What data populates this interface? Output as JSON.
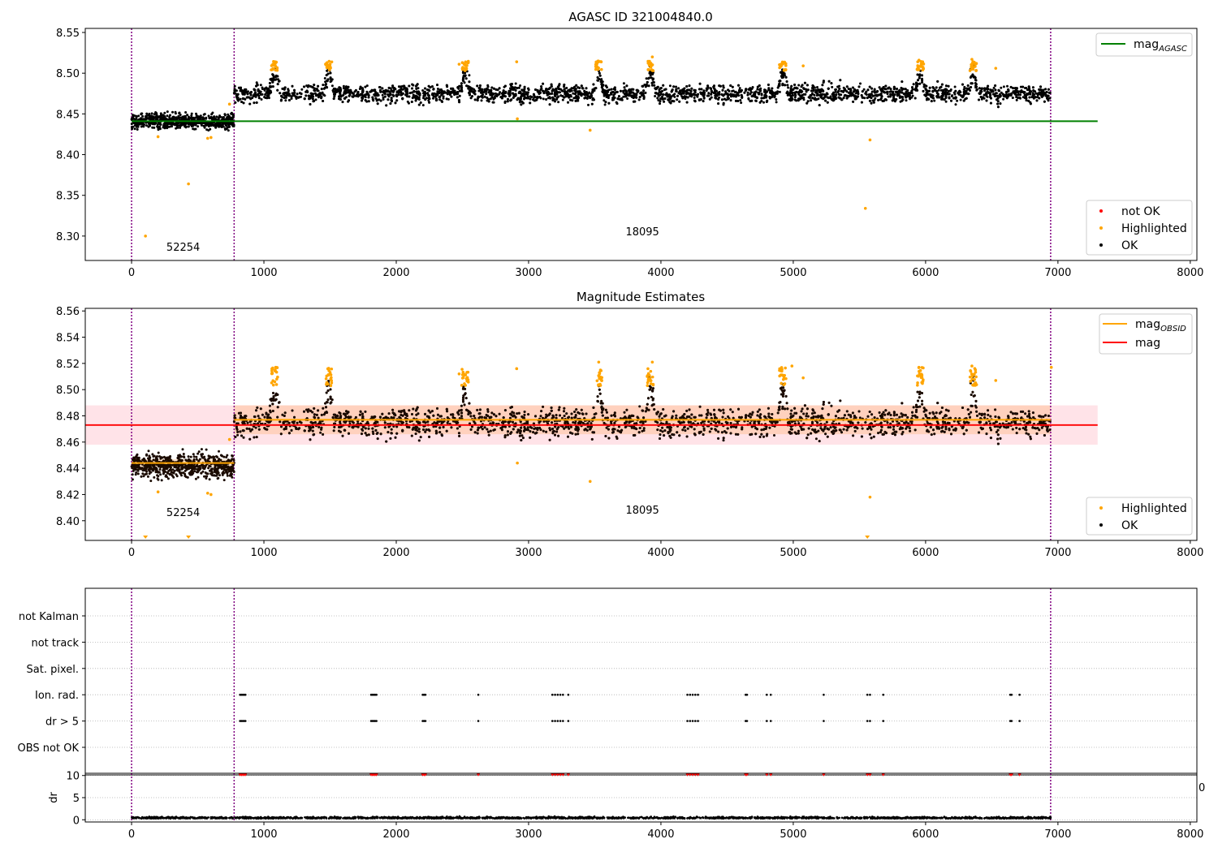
{
  "colors": {
    "ok": "#000000",
    "highlighted": "#ffa500",
    "not_ok": "#ff0000",
    "agasc_line": "#008000",
    "mag_line": "#ff0000",
    "obsid_line": "#ffa500",
    "obs_boundary": "#800080",
    "band": "#ffc0cb",
    "grid": "#b0b0b0"
  },
  "chart_data": [
    {
      "type": "scatter",
      "title": "AGASC ID 321004840.0",
      "xlabel": "",
      "ylabel": "",
      "xlim": [
        -350,
        8050
      ],
      "ylim": [
        8.27,
        8.555
      ],
      "xticks": [
        "0",
        "1000",
        "2000",
        "3000",
        "4000",
        "5000",
        "6000",
        "7000",
        "8000"
      ],
      "yticks": [
        "8.30",
        "8.35",
        "8.40",
        "8.45",
        "8.50",
        "8.55"
      ],
      "obs_boundaries": [
        0,
        775,
        6945
      ],
      "obs_labels": [
        {
          "text": "52254",
          "x": 390,
          "y": 8.282
        },
        {
          "text": "18095",
          "x": 3860,
          "y": 8.301
        }
      ],
      "series": [
        {
          "name": "not OK",
          "kind": "points",
          "values": []
        },
        {
          "name": "Highlighted",
          "kind": "points",
          "values": [
            {
              "x": 105,
              "y": 8.3
            },
            {
              "x": 430,
              "y": 8.364
            },
            {
              "x": 200,
              "y": 8.422
            },
            {
              "x": 575,
              "y": 8.42
            },
            {
              "x": 600,
              "y": 8.421
            },
            {
              "x": 2915,
              "y": 8.444
            },
            {
              "x": 3465,
              "y": 8.43
            },
            {
              "x": 5545,
              "y": 8.334
            },
            {
              "x": 5580,
              "y": 8.418
            },
            {
              "x": 740,
              "y": 8.462
            },
            {
              "x": 1085,
              "y": 8.514
            },
            {
              "x": 1500,
              "y": 8.511
            },
            {
              "x": 2475,
              "y": 8.511
            },
            {
              "x": 2910,
              "y": 8.514
            },
            {
              "x": 3525,
              "y": 8.515
            },
            {
              "x": 3935,
              "y": 8.52
            },
            {
              "x": 4920,
              "y": 8.512
            },
            {
              "x": 5075,
              "y": 8.509
            },
            {
              "x": 5950,
              "y": 8.516
            },
            {
              "x": 6350,
              "y": 8.517
            },
            {
              "x": 6530,
              "y": 8.506
            }
          ]
        },
        {
          "name": "OK",
          "kind": "points",
          "note_values": "dense observations; baseline levels below",
          "segments": [
            {
              "x0": 0,
              "x1": 775,
              "level": 8.441,
              "spread": 0.009
            },
            {
              "x0": 775,
              "x1": 6945,
              "level": 8.475,
              "spread": 0.011
            }
          ],
          "bumps": [
            1080,
            1490,
            2520,
            3530,
            3920,
            4920,
            5960,
            6360
          ]
        },
        {
          "name": "mag_AGASC",
          "kind": "hline",
          "y": 8.441,
          "xlim": [
            0,
            7300
          ]
        }
      ],
      "legends": [
        {
          "position": "upper-right",
          "entries": [
            {
              "label": "mag",
              "sub": "AGASC",
              "style": "line",
              "color_key": "agasc_line"
            }
          ]
        },
        {
          "position": "lower-right",
          "entries": [
            {
              "label": "not OK",
              "style": "dot",
              "color_key": "not_ok"
            },
            {
              "label": "Highlighted",
              "style": "dot",
              "color_key": "highlighted"
            },
            {
              "label": "OK",
              "style": "dot",
              "color_key": "ok"
            }
          ]
        }
      ]
    },
    {
      "type": "scatter",
      "title": "Magnitude Estimates",
      "xlabel": "",
      "ylabel": "",
      "xlim": [
        -350,
        8050
      ],
      "ylim": [
        8.385,
        8.562
      ],
      "xticks": [
        "0",
        "1000",
        "2000",
        "3000",
        "4000",
        "5000",
        "6000",
        "7000",
        "8000"
      ],
      "yticks": [
        "8.40",
        "8.42",
        "8.44",
        "8.46",
        "8.48",
        "8.50",
        "8.52",
        "8.54",
        "8.56"
      ],
      "obs_boundaries": [
        0,
        775,
        6945
      ],
      "obs_labels": [
        {
          "text": "52254",
          "x": 390,
          "y": 8.4035
        },
        {
          "text": "18095",
          "x": 3860,
          "y": 8.4055
        }
      ],
      "mag": {
        "value": 8.473,
        "band": [
          8.458,
          8.488
        ],
        "xlim": [
          -350,
          7300
        ]
      },
      "mag_obsid": [
        {
          "x0": 0,
          "x1": 775,
          "value": 8.444,
          "band": [
            8.441,
            8.447
          ]
        },
        {
          "x0": 775,
          "x1": 6945,
          "value": 8.477,
          "band": [
            8.466,
            8.488
          ]
        }
      ],
      "clipped_markers_x": [
        105,
        430,
        5560
      ],
      "series": [
        {
          "name": "Highlighted",
          "kind": "points",
          "values": [
            {
              "x": 200,
              "y": 8.422
            },
            {
              "x": 575,
              "y": 8.421
            },
            {
              "x": 600,
              "y": 8.42
            },
            {
              "x": 2915,
              "y": 8.444
            },
            {
              "x": 3465,
              "y": 8.43
            },
            {
              "x": 5580,
              "y": 8.418
            },
            {
              "x": 740,
              "y": 8.462
            },
            {
              "x": 1085,
              "y": 8.515
            },
            {
              "x": 1500,
              "y": 8.512
            },
            {
              "x": 2475,
              "y": 8.512
            },
            {
              "x": 2910,
              "y": 8.516
            },
            {
              "x": 3530,
              "y": 8.521
            },
            {
              "x": 3935,
              "y": 8.521
            },
            {
              "x": 4990,
              "y": 8.518
            },
            {
              "x": 5075,
              "y": 8.509
            },
            {
              "x": 5950,
              "y": 8.517
            },
            {
              "x": 6350,
              "y": 8.518
            },
            {
              "x": 6530,
              "y": 8.507
            },
            {
              "x": 6950,
              "y": 8.517
            }
          ]
        },
        {
          "name": "OK",
          "kind": "points",
          "note_values": "dense observations; baseline levels below",
          "segments": [
            {
              "x0": 0,
              "x1": 775,
              "level": 8.442,
              "spread": 0.009
            },
            {
              "x0": 775,
              "x1": 6945,
              "level": 8.475,
              "spread": 0.011
            }
          ]
        }
      ],
      "legends": [
        {
          "position": "upper-right",
          "entries": [
            {
              "label": "mag",
              "sub": "OBSID",
              "style": "line",
              "color_key": "obsid_line"
            },
            {
              "label": "mag",
              "sub": "",
              "style": "line",
              "color_key": "mag_line"
            }
          ]
        },
        {
          "position": "lower-right",
          "entries": [
            {
              "label": "Highlighted",
              "style": "dot",
              "color_key": "highlighted"
            },
            {
              "label": "OK",
              "style": "dot",
              "color_key": "ok"
            }
          ]
        }
      ]
    },
    {
      "type": "scatter",
      "title": "",
      "xlabel": "",
      "ylabel": "",
      "xlim": [
        -350,
        8050
      ],
      "categories": [
        "not Kalman",
        "not track",
        "Sat. pixel.",
        "Ion. rad.",
        "dr > 5",
        "OBS not OK"
      ],
      "obs_boundaries": [
        0,
        775,
        6945
      ],
      "flag_x": [
        820,
        830,
        840,
        850,
        860,
        1810,
        1820,
        1830,
        1840,
        1850,
        2200,
        2210,
        2220,
        2620,
        3180,
        3200,
        3220,
        3240,
        3260,
        3300,
        4200,
        4220,
        4240,
        4260,
        4280,
        4640,
        4650,
        4800,
        4830,
        5230,
        5560,
        5580,
        5680,
        6640,
        6650,
        6710
      ],
      "flagged_rows": [
        "Ion. rad.",
        "dr > 5"
      ]
    },
    {
      "type": "scatter",
      "title": "",
      "xlabel": "",
      "ylabel": "dr",
      "xlim": [
        -350,
        8050
      ],
      "ylim": [
        -0.5,
        10.5
      ],
      "xticks": [
        "0",
        "1000",
        "2000",
        "3000",
        "4000",
        "5000",
        "6000",
        "7000",
        "8000"
      ],
      "yticks": [
        "0",
        "5",
        "10"
      ],
      "stray_tick": "0",
      "obs_boundaries": [
        0,
        775,
        6945
      ],
      "dr_level": 0.3,
      "dr_clipped_value": 10
    }
  ]
}
